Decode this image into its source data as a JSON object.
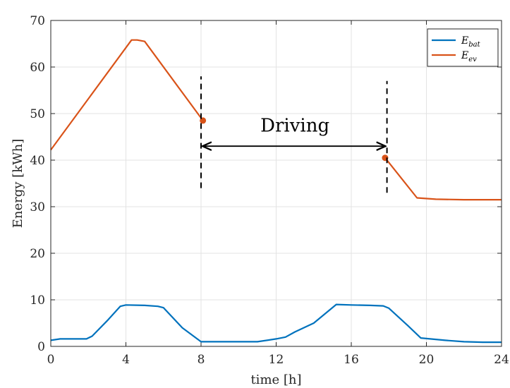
{
  "chart_data": {
    "type": "line",
    "xlabel": "time [h]",
    "ylabel": "Energy [kWh]",
    "xlim": [
      0,
      24
    ],
    "ylim": [
      0,
      70
    ],
    "xticks": [
      0,
      4,
      8,
      12,
      16,
      20,
      24
    ],
    "yticks": [
      0,
      10,
      20,
      30,
      40,
      50,
      60,
      70
    ],
    "grid": true,
    "legend_position": "top-right",
    "series": [
      {
        "name": "E_bat",
        "legend_main": "E",
        "legend_sub": "bat",
        "color": "#0072BD",
        "x": [
          0,
          0.5,
          1.5,
          1.9,
          2.2,
          3,
          3.7,
          4,
          5,
          5.7,
          6,
          7,
          8,
          8.5,
          11,
          12,
          12.5,
          13,
          14,
          15.2,
          16,
          17,
          17.7,
          18,
          19,
          19.7,
          21,
          22,
          23,
          24
        ],
        "y": [
          1.3,
          1.6,
          1.6,
          1.6,
          2.2,
          5.5,
          8.6,
          8.9,
          8.8,
          8.6,
          8.3,
          4,
          1,
          1,
          1,
          1.6,
          2,
          3.1,
          5,
          9,
          8.9,
          8.8,
          8.7,
          8.2,
          4.5,
          1.8,
          1.3,
          1,
          0.9,
          0.9
        ]
      },
      {
        "name": "E_ev",
        "legend_main": "E",
        "legend_sub": "ev",
        "color": "#D95319",
        "x": [
          0,
          4.3,
          4.6,
          5,
          8.1
        ],
        "y": [
          42.2,
          65.8,
          65.8,
          65.5,
          48.5
        ],
        "x2": [
          17.8,
          19.5,
          20.5,
          22,
          24
        ],
        "y2": [
          40.5,
          31.9,
          31.6,
          31.5,
          31.5
        ]
      }
    ],
    "markers": [
      {
        "x": 8.1,
        "y": 48.5
      },
      {
        "x": 17.8,
        "y": 40.5
      }
    ],
    "vlines": [
      {
        "x": 8.0,
        "y0": 34,
        "y1": 58
      },
      {
        "x": 17.9,
        "y0": 33,
        "y1": 57
      }
    ],
    "arrow": {
      "x0": 8.0,
      "x1": 17.9,
      "y": 43
    },
    "annotation": {
      "text": "Driving",
      "x": 13,
      "y": 47.5
    }
  }
}
